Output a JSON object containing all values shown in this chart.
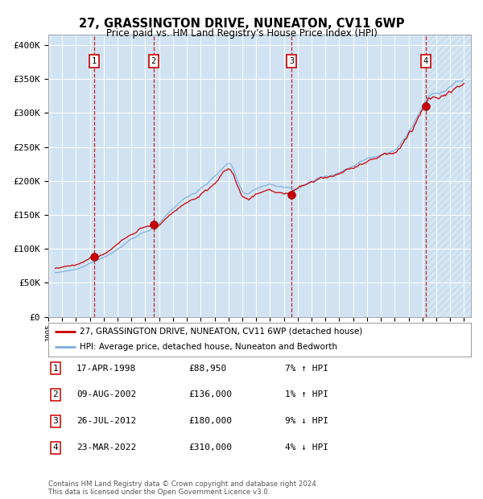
{
  "title": "27, GRASSINGTON DRIVE, NUNEATON, CV11 6WP",
  "subtitle": "Price paid vs. HM Land Registry's House Price Index (HPI)",
  "ylabel_ticks": [
    "£0",
    "£50K",
    "£100K",
    "£150K",
    "£200K",
    "£250K",
    "£300K",
    "£350K",
    "£400K"
  ],
  "ytick_values": [
    0,
    50000,
    100000,
    150000,
    200000,
    250000,
    300000,
    350000,
    400000
  ],
  "ylim": [
    0,
    415000
  ],
  "xlim_start": 1995.25,
  "xlim_end": 2025.5,
  "sale_dates": [
    1998.29,
    2002.6,
    2012.56,
    2022.23
  ],
  "sale_prices": [
    88950,
    136000,
    180000,
    310000
  ],
  "sale_labels": [
    "1",
    "2",
    "3",
    "4"
  ],
  "sale_hpi_diff": [
    "7% ↑ HPI",
    "1% ↑ HPI",
    "9% ↓ HPI",
    "4% ↓ HPI"
  ],
  "sale_date_labels": [
    "17-APR-1998",
    "09-AUG-2002",
    "26-JUL-2012",
    "23-MAR-2022"
  ],
  "sale_price_labels": [
    "£88,950",
    "£136,000",
    "£180,000",
    "£310,000"
  ],
  "legend_line1": "27, GRASSINGTON DRIVE, NUNEATON, CV11 6WP (detached house)",
  "legend_line2": "HPI: Average price, detached house, Nuneaton and Bedworth",
  "footer": "Contains HM Land Registry data © Crown copyright and database right 2024.\nThis data is licensed under the Open Government Licence v3.0.",
  "bg_color": "#dce9f5",
  "grid_color": "#ffffff",
  "line_color_red": "#cc0000",
  "line_color_blue": "#7aabde",
  "marker_color": "#cc0000",
  "dashed_line_color": "#cc0000",
  "sale_box_color": "#cc0000"
}
